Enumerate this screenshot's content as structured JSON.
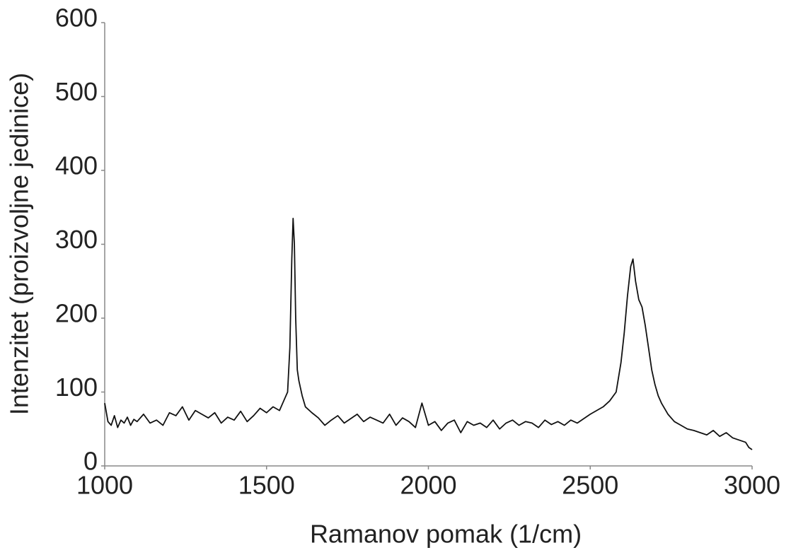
{
  "chart_data": {
    "type": "line",
    "y_label": "Intenzitet (proizvoljne jedinice)",
    "x_label": "Ramanov pomak (1/cm)",
    "color": "#111111",
    "xlim": [
      1000,
      3000
    ],
    "xticks": [
      1000,
      1500,
      2000,
      2500,
      3000
    ],
    "ylim": [
      0,
      600
    ],
    "yticks": [
      0,
      100,
      200,
      300,
      400,
      500,
      600
    ],
    "grid": false,
    "x": [
      1000,
      1010,
      1020,
      1030,
      1040,
      1050,
      1060,
      1070,
      1080,
      1090,
      1100,
      1120,
      1140,
      1160,
      1180,
      1200,
      1220,
      1240,
      1260,
      1280,
      1300,
      1320,
      1340,
      1360,
      1380,
      1400,
      1420,
      1440,
      1460,
      1480,
      1500,
      1520,
      1540,
      1555,
      1565,
      1572,
      1578,
      1582,
      1586,
      1590,
      1595,
      1600,
      1610,
      1620,
      1640,
      1660,
      1680,
      1700,
      1720,
      1740,
      1760,
      1780,
      1800,
      1820,
      1840,
      1860,
      1880,
      1900,
      1920,
      1940,
      1960,
      1980,
      2000,
      2020,
      2040,
      2060,
      2080,
      2100,
      2120,
      2140,
      2160,
      2180,
      2200,
      2220,
      2240,
      2260,
      2280,
      2300,
      2320,
      2340,
      2360,
      2380,
      2400,
      2420,
      2440,
      2460,
      2480,
      2500,
      2520,
      2540,
      2560,
      2580,
      2595,
      2605,
      2615,
      2625,
      2632,
      2640,
      2650,
      2660,
      2670,
      2680,
      2690,
      2700,
      2710,
      2720,
      2740,
      2760,
      2780,
      2800,
      2820,
      2840,
      2860,
      2880,
      2900,
      2920,
      2940,
      2960,
      2980,
      2990,
      3000
    ],
    "values": [
      85,
      60,
      55,
      68,
      52,
      62,
      58,
      66,
      55,
      63,
      60,
      70,
      58,
      62,
      55,
      72,
      68,
      80,
      62,
      75,
      70,
      65,
      72,
      58,
      66,
      62,
      74,
      60,
      68,
      78,
      72,
      80,
      75,
      90,
      100,
      160,
      280,
      335,
      300,
      200,
      130,
      115,
      95,
      80,
      72,
      65,
      55,
      62,
      68,
      58,
      64,
      70,
      60,
      66,
      62,
      58,
      70,
      55,
      65,
      60,
      52,
      85,
      55,
      60,
      48,
      58,
      62,
      45,
      60,
      55,
      58,
      52,
      62,
      50,
      58,
      62,
      55,
      60,
      58,
      52,
      62,
      56,
      60,
      55,
      62,
      58,
      64,
      70,
      75,
      80,
      88,
      100,
      140,
      180,
      230,
      270,
      280,
      250,
      225,
      215,
      190,
      160,
      130,
      110,
      95,
      85,
      70,
      60,
      55,
      50,
      48,
      45,
      42,
      48,
      40,
      45,
      38,
      35,
      32,
      25,
      22
    ]
  }
}
